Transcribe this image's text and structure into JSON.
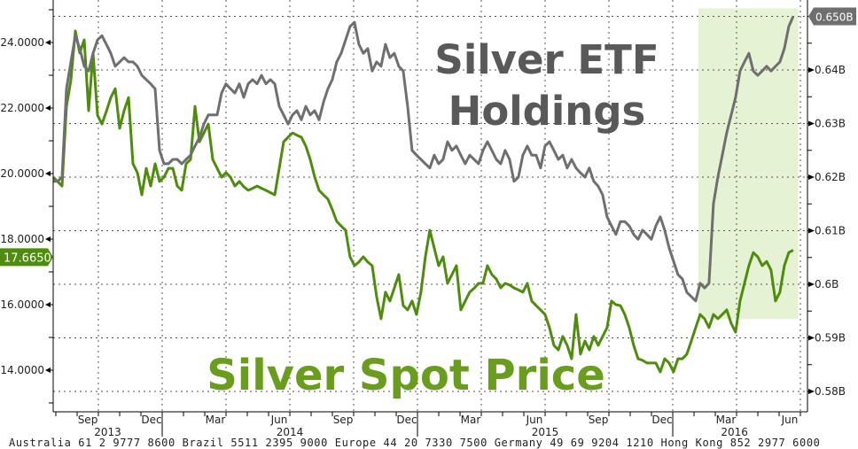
{
  "chart_data": {
    "type": "line",
    "title_lines": [
      "Silver ETF",
      "Holdings"
    ],
    "annotation": "Silver Spot Price",
    "x_unit": "months since 2013-07-01",
    "sample_start_month": -0.125,
    "sample_step_months": 0.2083,
    "left_axis": {
      "ticks": [
        "24.0000",
        "22.0000",
        "20.0000",
        "18.0000",
        "16.0000",
        "14.0000"
      ],
      "tick_values": [
        24,
        22,
        20,
        18,
        16,
        14
      ],
      "ylim": [
        12.7,
        25.3
      ]
    },
    "right_axis": {
      "ticks": [
        "0.64B",
        "0.63B",
        "0.62B",
        "0.61B",
        "0.6B",
        "0.59B",
        "0.58B"
      ],
      "tick_values": [
        0.64,
        0.63,
        0.62,
        0.61,
        0.6,
        0.59,
        0.58
      ],
      "ylim": [
        0.5762,
        0.6531
      ]
    },
    "x_ticks": [
      {
        "label": "Sep",
        "month": 2
      },
      {
        "label": "Dec",
        "month": 5
      },
      {
        "label": "Mar",
        "month": 8
      },
      {
        "label": "Jun",
        "month": 11
      },
      {
        "label": "Sep",
        "month": 14
      },
      {
        "label": "Dec",
        "month": 17
      },
      {
        "label": "Mar",
        "month": 20
      },
      {
        "label": "Jun",
        "month": 23
      },
      {
        "label": "Sep",
        "month": 26
      },
      {
        "label": "Dec",
        "month": 29
      },
      {
        "label": "Mar",
        "month": 32
      },
      {
        "label": "Jun",
        "month": 35
      }
    ],
    "years": [
      {
        "label": "2013",
        "from": -0.125,
        "to": 5
      },
      {
        "label": "2014",
        "from": 5,
        "to": 17
      },
      {
        "label": "2015",
        "from": 17,
        "to": 29
      },
      {
        "label": "2016",
        "from": 29,
        "to": 34.8
      }
    ],
    "highlight": {
      "from_month": 30.2,
      "to_month": 34.9,
      "y_from": 0.5935,
      "y_to": 0.6515,
      "color": "#e6f2d4"
    },
    "series": [
      {
        "name": "Silver Spot Price",
        "axis": "left",
        "color": "#4f8c0e",
        "last_label": "17.6650",
        "values": [
          19.89,
          19.76,
          19.62,
          22.05,
          22.86,
          24.35,
          23.68,
          24.08,
          21.92,
          23.68,
          21.78,
          21.51,
          21.9,
          22.32,
          22.59,
          21.38,
          21.92,
          22.32,
          20.3,
          20.03,
          19.35,
          20.16,
          19.62,
          20.3,
          19.76,
          19.89,
          20.16,
          20.16,
          19.62,
          19.49,
          20.3,
          20.43,
          22.05,
          20.97,
          21.24,
          21.51,
          20.43,
          20.16,
          19.89,
          20.03,
          19.89,
          19.62,
          19.76,
          19.6,
          19.49,
          19.55,
          19.62,
          19.55,
          19.49,
          19.42,
          19.35,
          20.16,
          20.97,
          21.11,
          21.24,
          21.17,
          21.11,
          20.84,
          20.43,
          19.9,
          19.49,
          19.35,
          19.22,
          18.9,
          18.54,
          18.4,
          18.27,
          17.46,
          17.19,
          17.3,
          17.46,
          17.3,
          17.19,
          16.24,
          15.57,
          16.38,
          16.11,
          16.51,
          16.92,
          15.97,
          15.84,
          16.11,
          15.7,
          16.38,
          17.46,
          18.27,
          17.73,
          17.19,
          17.46,
          16.65,
          16.92,
          17.19,
          15.84,
          16.11,
          16.38,
          16.5,
          16.65,
          16.65,
          17.19,
          16.92,
          16.78,
          16.51,
          16.65,
          16.6,
          16.51,
          16.45,
          16.38,
          16.65,
          16.11,
          15.97,
          15.84,
          15.7,
          15.3,
          14.76,
          14.62,
          15.03,
          14.76,
          14.35,
          15.7,
          14.49,
          14.89,
          14.62,
          15.03,
          14.76,
          15.03,
          15.3,
          16.11,
          16.0,
          15.97,
          15.7,
          15.3,
          14.76,
          14.35,
          14.3,
          14.22,
          14.22,
          14.22,
          13.95,
          14.35,
          14.22,
          13.95,
          14.35,
          14.35,
          14.49,
          14.89,
          15.3,
          15.7,
          15.57,
          15.3,
          15.7,
          15.57,
          15.7,
          15.84,
          15.43,
          15.16,
          16.11,
          16.65,
          17.19,
          17.59,
          17.46,
          17.19,
          17.32,
          17.05,
          16.11,
          16.38,
          17.19,
          17.59,
          17.665
        ]
      },
      {
        "name": "Silver ETF Holdings",
        "axis": "right",
        "color": "#6f6f6f",
        "last_label": "0.650B",
        "values": [
          0.6192,
          0.6192,
          0.62,
          0.6365,
          0.6415,
          0.6464,
          0.644,
          0.6407,
          0.6398,
          0.6431,
          0.6456,
          0.6464,
          0.6448,
          0.6431,
          0.6407,
          0.6415,
          0.6423,
          0.6415,
          0.6415,
          0.6407,
          0.639,
          0.6382,
          0.6374,
          0.6365,
          0.625,
          0.6225,
          0.6225,
          0.6233,
          0.6233,
          0.6225,
          0.6233,
          0.6241,
          0.6258,
          0.6274,
          0.6299,
          0.6316,
          0.6316,
          0.6316,
          0.6357,
          0.6374,
          0.6365,
          0.6357,
          0.6374,
          0.6349,
          0.6374,
          0.6382,
          0.6374,
          0.639,
          0.6374,
          0.6382,
          0.6374,
          0.6332,
          0.6316,
          0.6299,
          0.6316,
          0.6324,
          0.6307,
          0.6332,
          0.6316,
          0.6324,
          0.6307,
          0.634,
          0.6365,
          0.6382,
          0.6415,
          0.6431,
          0.6456,
          0.6481,
          0.6489,
          0.6448,
          0.6431,
          0.644,
          0.6398,
          0.6415,
          0.6407,
          0.6448,
          0.6423,
          0.6431,
          0.6407,
          0.6398,
          0.6332,
          0.625,
          0.6241,
          0.6233,
          0.6225,
          0.6217,
          0.6241,
          0.6225,
          0.6233,
          0.6266,
          0.625,
          0.6258,
          0.6241,
          0.6225,
          0.6241,
          0.6233,
          0.6225,
          0.625,
          0.6266,
          0.625,
          0.6233,
          0.6225,
          0.625,
          0.6233,
          0.6192,
          0.62,
          0.6241,
          0.6258,
          0.6241,
          0.6241,
          0.6217,
          0.6258,
          0.6266,
          0.625,
          0.6233,
          0.6241,
          0.6217,
          0.6233,
          0.6217,
          0.6208,
          0.62,
          0.6217,
          0.6192,
          0.6183,
          0.6167,
          0.6126,
          0.6109,
          0.6093,
          0.6117,
          0.6117,
          0.6109,
          0.6093,
          0.6084,
          0.6101,
          0.6093,
          0.6084,
          0.6109,
          0.6126,
          0.6101,
          0.6068,
          0.6043,
          0.6018,
          0.601,
          0.5985,
          0.5977,
          0.5969,
          0.6002,
          0.5993,
          0.6002,
          0.615,
          0.62,
          0.6241,
          0.6283,
          0.6316,
          0.6349,
          0.6398,
          0.6415,
          0.6431,
          0.6398,
          0.639,
          0.6398,
          0.6407,
          0.6398,
          0.6407,
          0.6415,
          0.644,
          0.6481,
          0.65
        ]
      }
    ]
  },
  "footer": "Australia 61 2 9777 8600 Brazil 5511 2395 9000 Europe 44 20 7330 7500 Germany 49 69 9204 1210 Hong Kong 852 2977 6000"
}
